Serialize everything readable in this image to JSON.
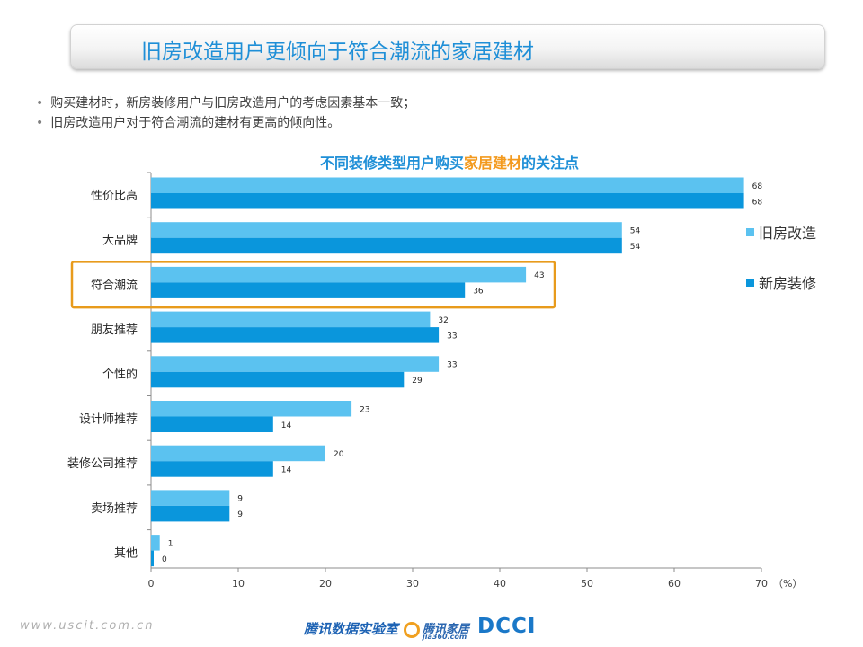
{
  "header": {
    "title": "旧房改造用户更倾向于符合潮流的家居建材"
  },
  "bullets": [
    "购买建材时，新房装修用户与旧房改造用户的考虑因素基本一致；",
    "旧房改造用户对于符合潮流的建材有更高的倾向性。"
  ],
  "chart_title": {
    "part1": "不同装修类型用户购买",
    "highlight": "家居建材",
    "part2": "的关注点"
  },
  "chart_data": {
    "type": "bar",
    "orientation": "horizontal",
    "title": "不同装修类型用户购买家居建材的关注点",
    "categories": [
      "性价比高",
      "大品牌",
      "符合潮流",
      "朋友推荐",
      "个性的",
      "设计师推荐",
      "装修公司推荐",
      "卖场推荐",
      "其他"
    ],
    "series": [
      {
        "name": "旧房改造",
        "color": "#5bc2f0",
        "values": [
          68,
          54,
          43,
          32,
          33,
          23,
          20,
          9,
          1
        ]
      },
      {
        "name": "新房装修",
        "color": "#0a96dc",
        "values": [
          68,
          54,
          36,
          33,
          29,
          14,
          14,
          9,
          0
        ]
      }
    ],
    "xlim": [
      0,
      70
    ],
    "xticks": [
      "0",
      "10",
      "20",
      "30",
      "40",
      "50",
      "60",
      "70"
    ],
    "xunit": "（%）",
    "highlight_category": "符合潮流",
    "highlight_color": "#e89b1c",
    "legend_position": "right"
  },
  "footer": {
    "url": "www.uscit.com.cn",
    "lab": "腾讯数据实验室",
    "jia": "腾讯家居",
    "jia_sub": "jia360.com",
    "dcci": "DCCI"
  }
}
